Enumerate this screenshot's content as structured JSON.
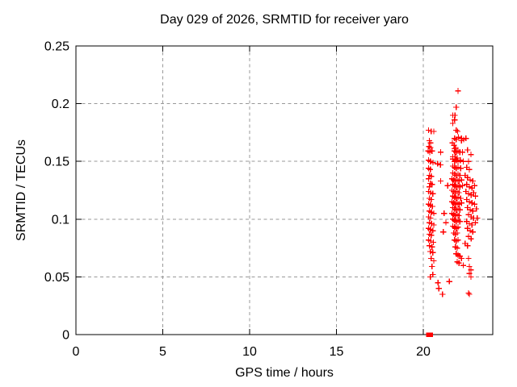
{
  "colors": {
    "marker": "#ff0000",
    "grid": "#999999",
    "frame": "#000000",
    "background": "#ffffff",
    "text": "#000000"
  },
  "chart_data": {
    "type": "scatter",
    "title": "Day 029 of 2026, SRMTID for receiver yaro",
    "xlabel": "GPS time / hours",
    "ylabel": "SRMTID / TECUs",
    "xlim": [
      0,
      24
    ],
    "ylim": [
      0,
      0.25
    ],
    "xticks": [
      0,
      5,
      10,
      15,
      20
    ],
    "xtick_labels": [
      "0",
      "5",
      "10",
      "15",
      "20"
    ],
    "yticks": [
      0,
      0.05,
      0.1,
      0.15,
      0.2,
      0.25
    ],
    "ytick_labels": [
      "0",
      "0.05",
      "0.1",
      "0.15",
      "0.2",
      "0.25"
    ],
    "grid": true,
    "legend_position": "none",
    "marker": "plus",
    "marker_color": "#ff0000",
    "series": [
      {
        "name": "SRMTID",
        "marker": "plus",
        "color": "#ff0000",
        "points": [
          [
            20.3,
            0.177
          ],
          [
            20.45,
            0.176
          ],
          [
            20.6,
            0.176
          ],
          [
            20.35,
            0.168
          ],
          [
            20.42,
            0.166
          ],
          [
            20.33,
            0.163
          ],
          [
            20.42,
            0.162
          ],
          [
            20.28,
            0.159
          ],
          [
            20.37,
            0.158
          ],
          [
            20.5,
            0.159
          ],
          [
            20.3,
            0.151
          ],
          [
            20.4,
            0.15
          ],
          [
            20.56,
            0.149
          ],
          [
            20.83,
            0.148
          ],
          [
            20.98,
            0.147
          ],
          [
            20.3,
            0.144
          ],
          [
            20.4,
            0.143
          ],
          [
            20.35,
            0.138
          ],
          [
            20.45,
            0.137
          ],
          [
            20.3,
            0.135
          ],
          [
            20.4,
            0.131
          ],
          [
            20.5,
            0.13
          ],
          [
            20.35,
            0.128
          ],
          [
            20.3,
            0.124
          ],
          [
            20.42,
            0.123
          ],
          [
            20.55,
            0.122
          ],
          [
            20.35,
            0.118
          ],
          [
            20.45,
            0.117
          ],
          [
            20.3,
            0.113
          ],
          [
            20.4,
            0.112
          ],
          [
            20.52,
            0.111
          ],
          [
            20.35,
            0.107
          ],
          [
            20.45,
            0.106
          ],
          [
            20.6,
            0.105
          ],
          [
            20.3,
            0.102
          ],
          [
            20.42,
            0.101
          ],
          [
            20.35,
            0.097
          ],
          [
            20.48,
            0.096
          ],
          [
            20.6,
            0.095
          ],
          [
            20.3,
            0.092
          ],
          [
            20.4,
            0.091
          ],
          [
            20.55,
            0.09
          ],
          [
            20.35,
            0.087
          ],
          [
            20.45,
            0.086
          ],
          [
            20.3,
            0.082
          ],
          [
            20.42,
            0.081
          ],
          [
            20.58,
            0.08
          ],
          [
            20.35,
            0.077
          ],
          [
            20.5,
            0.076
          ],
          [
            20.4,
            0.072
          ],
          [
            20.55,
            0.071
          ],
          [
            20.45,
            0.066
          ],
          [
            20.6,
            0.064
          ],
          [
            20.5,
            0.059
          ],
          [
            20.4,
            0.05
          ],
          [
            20.55,
            0.052
          ],
          [
            20.84,
            0.045
          ],
          [
            20.9,
            0.04
          ],
          [
            21.1,
            0.035
          ],
          [
            21.0,
            0.158
          ],
          [
            21.0,
            0.147
          ],
          [
            21.0,
            0.133
          ],
          [
            21.4,
            0.129
          ],
          [
            21.2,
            0.105
          ],
          [
            21.3,
            0.097
          ],
          [
            21.15,
            0.089
          ],
          [
            22.0,
            0.211
          ],
          [
            21.9,
            0.197
          ],
          [
            21.7,
            0.19
          ],
          [
            21.82,
            0.19
          ],
          [
            21.8,
            0.186
          ],
          [
            21.7,
            0.183
          ],
          [
            21.9,
            0.177
          ],
          [
            21.97,
            0.176
          ],
          [
            22.02,
            0.171
          ],
          [
            21.8,
            0.17
          ],
          [
            21.9,
            0.169
          ],
          [
            22.2,
            0.17
          ],
          [
            22.32,
            0.169
          ],
          [
            22.2,
            0.168
          ],
          [
            21.67,
            0.166
          ],
          [
            21.77,
            0.164
          ],
          [
            21.86,
            0.162
          ],
          [
            21.8,
            0.161
          ],
          [
            21.8,
            0.159
          ],
          [
            21.9,
            0.158
          ],
          [
            22.0,
            0.159
          ],
          [
            22.1,
            0.158
          ],
          [
            22.25,
            0.158
          ],
          [
            21.7,
            0.154
          ],
          [
            21.82,
            0.154
          ],
          [
            21.95,
            0.153
          ],
          [
            21.7,
            0.152
          ],
          [
            21.8,
            0.15
          ],
          [
            21.9,
            0.151
          ],
          [
            22.0,
            0.15
          ],
          [
            22.12,
            0.151
          ],
          [
            22.3,
            0.15
          ],
          [
            21.7,
            0.146
          ],
          [
            21.8,
            0.145
          ],
          [
            21.9,
            0.144
          ],
          [
            22.0,
            0.145
          ],
          [
            22.15,
            0.144
          ],
          [
            21.7,
            0.14
          ],
          [
            21.8,
            0.139
          ],
          [
            21.9,
            0.138
          ],
          [
            22.0,
            0.139
          ],
          [
            22.1,
            0.138
          ],
          [
            21.65,
            0.135
          ],
          [
            21.75,
            0.134
          ],
          [
            21.85,
            0.133
          ],
          [
            21.95,
            0.134
          ],
          [
            22.05,
            0.133
          ],
          [
            22.2,
            0.134
          ],
          [
            21.7,
            0.13
          ],
          [
            21.8,
            0.129
          ],
          [
            21.9,
            0.128
          ],
          [
            22.0,
            0.129
          ],
          [
            22.1,
            0.128
          ],
          [
            22.25,
            0.129
          ],
          [
            21.65,
            0.125
          ],
          [
            21.75,
            0.124
          ],
          [
            21.85,
            0.123
          ],
          [
            21.95,
            0.124
          ],
          [
            22.05,
            0.123
          ],
          [
            21.7,
            0.12
          ],
          [
            21.8,
            0.119
          ],
          [
            21.9,
            0.118
          ],
          [
            22.0,
            0.119
          ],
          [
            22.15,
            0.118
          ],
          [
            21.65,
            0.115
          ],
          [
            21.75,
            0.114
          ],
          [
            21.85,
            0.113
          ],
          [
            21.95,
            0.114
          ],
          [
            22.05,
            0.113
          ],
          [
            22.2,
            0.114
          ],
          [
            21.7,
            0.11
          ],
          [
            21.8,
            0.109
          ],
          [
            21.9,
            0.108
          ],
          [
            22.0,
            0.109
          ],
          [
            22.1,
            0.108
          ],
          [
            21.65,
            0.105
          ],
          [
            21.75,
            0.104
          ],
          [
            21.85,
            0.103
          ],
          [
            21.95,
            0.104
          ],
          [
            22.05,
            0.103
          ],
          [
            21.7,
            0.1
          ],
          [
            21.8,
            0.099
          ],
          [
            21.9,
            0.098
          ],
          [
            22.0,
            0.099
          ],
          [
            22.1,
            0.098
          ],
          [
            21.7,
            0.094
          ],
          [
            21.8,
            0.093
          ],
          [
            21.9,
            0.092
          ],
          [
            22.0,
            0.093
          ],
          [
            21.75,
            0.088
          ],
          [
            21.85,
            0.087
          ],
          [
            21.95,
            0.088
          ],
          [
            21.8,
            0.082
          ],
          [
            21.9,
            0.081
          ],
          [
            22.0,
            0.082
          ],
          [
            21.85,
            0.076
          ],
          [
            21.95,
            0.075
          ],
          [
            21.9,
            0.07
          ],
          [
            22.0,
            0.069
          ],
          [
            22.1,
            0.068
          ],
          [
            21.95,
            0.063
          ],
          [
            22.05,
            0.062
          ],
          [
            21.5,
            0.046
          ],
          [
            22.45,
            0.17
          ],
          [
            22.55,
            0.16
          ],
          [
            22.74,
            0.156
          ],
          [
            22.6,
            0.15
          ],
          [
            22.5,
            0.145
          ],
          [
            22.65,
            0.143
          ],
          [
            22.4,
            0.138
          ],
          [
            22.55,
            0.136
          ],
          [
            22.7,
            0.134
          ],
          [
            22.85,
            0.133
          ],
          [
            22.5,
            0.13
          ],
          [
            22.65,
            0.128
          ],
          [
            22.8,
            0.127
          ],
          [
            22.95,
            0.129
          ],
          [
            22.45,
            0.124
          ],
          [
            22.6,
            0.122
          ],
          [
            22.75,
            0.121
          ],
          [
            22.9,
            0.123
          ],
          [
            23.0,
            0.12
          ],
          [
            22.5,
            0.117
          ],
          [
            22.65,
            0.115
          ],
          [
            22.8,
            0.114
          ],
          [
            22.95,
            0.113
          ],
          [
            22.55,
            0.11
          ],
          [
            22.7,
            0.108
          ],
          [
            22.85,
            0.107
          ],
          [
            23.05,
            0.109
          ],
          [
            22.6,
            0.104
          ],
          [
            22.75,
            0.102
          ],
          [
            22.9,
            0.101
          ],
          [
            23.1,
            0.101
          ],
          [
            22.5,
            0.098
          ],
          [
            22.65,
            0.096
          ],
          [
            22.8,
            0.095
          ],
          [
            23.0,
            0.097
          ],
          [
            22.55,
            0.092
          ],
          [
            22.7,
            0.09
          ],
          [
            22.85,
            0.089
          ],
          [
            22.6,
            0.085
          ],
          [
            22.75,
            0.083
          ],
          [
            22.4,
            0.079
          ],
          [
            22.55,
            0.077
          ],
          [
            22.2,
            0.066
          ],
          [
            22.6,
            0.066
          ],
          [
            22.3,
            0.06
          ],
          [
            22.65,
            0.059
          ],
          [
            22.74,
            0.056
          ],
          [
            22.65,
            0.053
          ],
          [
            22.74,
            0.05
          ],
          [
            22.6,
            0.036
          ],
          [
            22.65,
            0.035
          ]
        ]
      }
    ],
    "zero_markers": {
      "marker": "filled-square",
      "color": "#ff0000",
      "points": [
        [
          20.28,
          0
        ],
        [
          20.42,
          0
        ]
      ]
    }
  }
}
